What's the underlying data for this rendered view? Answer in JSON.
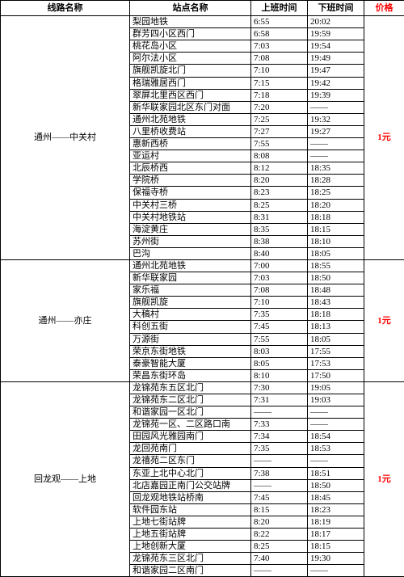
{
  "price_color": "#ff0000",
  "headers": {
    "route": "线路名称",
    "stop": "站点名称",
    "t1": "上班时间",
    "t2": "下班时间",
    "price": "价格"
  },
  "routes": [
    {
      "name": "通州——中关村",
      "price": "1元",
      "stops": [
        {
          "s": "梨园地铁",
          "a": "6:55",
          "b": "20:02"
        },
        {
          "s": "群芳四小区西门",
          "a": "6:58",
          "b": "19:59"
        },
        {
          "s": "桃花岛小区",
          "a": "7:03",
          "b": "19:54"
        },
        {
          "s": "阿尔法小区",
          "a": "7:08",
          "b": "19:49"
        },
        {
          "s": "旗舰凯旋北门",
          "a": "7:10",
          "b": "19:47"
        },
        {
          "s": "格瑞雅居西门",
          "a": "7:15",
          "b": "19:42"
        },
        {
          "s": "翠屏北里西区西门",
          "a": "7:18",
          "b": "19:39"
        },
        {
          "s": "新华联家园北区东门对面",
          "a": "7:20",
          "b": "——"
        },
        {
          "s": "通州北苑地铁",
          "a": "7:25",
          "b": "19:32"
        },
        {
          "s": "八里桥收费站",
          "a": "7:27",
          "b": "19:27"
        },
        {
          "s": "惠新西桥",
          "a": "7:55",
          "b": "——"
        },
        {
          "s": "亚运村",
          "a": "8:08",
          "b": "——"
        },
        {
          "s": "北辰桥西",
          "a": "8:12",
          "b": "18:35"
        },
        {
          "s": "学院桥",
          "a": "8:20",
          "b": "18:28"
        },
        {
          "s": "保福寺桥",
          "a": "8:23",
          "b": "18:25"
        },
        {
          "s": "中关村三桥",
          "a": "8:25",
          "b": "18:20"
        },
        {
          "s": "中关村地铁站",
          "a": "8:31",
          "b": "18:18"
        },
        {
          "s": "海淀黄庄",
          "a": "8:35",
          "b": "18:15"
        },
        {
          "s": "苏州街",
          "a": "8:38",
          "b": "18:10"
        },
        {
          "s": "巴沟",
          "a": "8:40",
          "b": "18:05"
        }
      ]
    },
    {
      "name": "通州——亦庄",
      "price": "1元",
      "stops": [
        {
          "s": "通州北苑地铁",
          "a": "7:00",
          "b": "18:55"
        },
        {
          "s": "新华联家园",
          "a": "7:03",
          "b": "18:50"
        },
        {
          "s": "家乐福",
          "a": "7:08",
          "b": "18:48"
        },
        {
          "s": "旗舰凯旋",
          "a": "7:10",
          "b": "18:43"
        },
        {
          "s": "大稿村",
          "a": "7:35",
          "b": "18:18"
        },
        {
          "s": "科创五街",
          "a": "7:45",
          "b": "18:13"
        },
        {
          "s": "万源街",
          "a": "7:55",
          "b": "18:05"
        },
        {
          "s": "荣京东街地铁",
          "a": "8:03",
          "b": "17:55"
        },
        {
          "s": "泰豪智能大厦",
          "a": "8:05",
          "b": "17:53"
        },
        {
          "s": "荣昌东街环岛",
          "a": "8:10",
          "b": "17:50"
        }
      ]
    },
    {
      "name": "回龙观——上地",
      "price": "1元",
      "stops": [
        {
          "s": "龙锦苑东五区北门",
          "a": "7:30",
          "b": "19:05"
        },
        {
          "s": "龙锦苑东二区北门",
          "a": "7:31",
          "b": "19:03"
        },
        {
          "s": "和谐家园一区北门",
          "a": "——",
          "b": "——"
        },
        {
          "s": "龙锦苑一区、二区路口南",
          "a": "7:33",
          "b": "——"
        },
        {
          "s": "田园风光雅园南门",
          "a": "7:34",
          "b": "18:54"
        },
        {
          "s": "龙回苑南门",
          "a": "7:35",
          "b": "18:53"
        },
        {
          "s": "龙禧苑二区东门",
          "a": "——",
          "b": "——"
        },
        {
          "s": "东亚上北中心北门",
          "a": "7:38",
          "b": "18:51"
        },
        {
          "s": "北店嘉园正南门公交站牌",
          "a": "——",
          "b": "18:50"
        },
        {
          "s": "回龙观地铁站桥南",
          "a": "7:45",
          "b": "18:45"
        },
        {
          "s": "软件园东站",
          "a": "8:15",
          "b": "18:23"
        },
        {
          "s": "上地七街站牌",
          "a": "8:20",
          "b": "18:19"
        },
        {
          "s": "上地五街站牌",
          "a": "8:22",
          "b": "18:17"
        },
        {
          "s": "上地创新大厦",
          "a": "8:25",
          "b": "18:15"
        },
        {
          "s": "龙锦苑东三区北门",
          "a": "7:40",
          "b": "19:30"
        },
        {
          "s": "和谐家园二区南门",
          "a": "——",
          "b": "——"
        }
      ]
    }
  ]
}
